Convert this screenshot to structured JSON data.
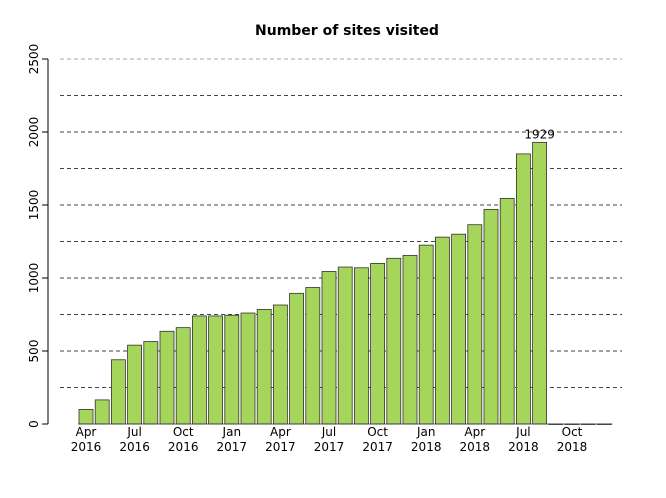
{
  "chart_data": {
    "type": "bar",
    "title": "Number of sites visited",
    "xlabel": "",
    "ylabel": "",
    "ylim": [
      0,
      2500
    ],
    "yticks": [
      0,
      500,
      1000,
      1500,
      2000,
      2500
    ],
    "gridlines": [
      250,
      500,
      750,
      1000,
      1250,
      1500,
      1750,
      2000,
      2250,
      2500
    ],
    "bar_color": "#a5d55a",
    "bar_edge_color": "#333333",
    "categories": [
      "Apr 2016",
      "May 2016",
      "Jun 2016",
      "Jul 2016",
      "Aug 2016",
      "Sep 2016",
      "Oct 2016",
      "Nov 2016",
      "Dec 2016",
      "Jan 2017",
      "Feb 2017",
      "Mar 2017",
      "Apr 2017",
      "May 2017",
      "Jun 2017",
      "Jul 2017",
      "Aug 2017",
      "Sep 2017",
      "Oct 2017",
      "Nov 2017",
      "Dec 2017",
      "Jan 2018",
      "Feb 2018",
      "Mar 2018",
      "Apr 2018",
      "May 2018",
      "Jun 2018",
      "Jul 2018",
      "Aug 2018",
      "Sep 2018",
      "Oct 2018",
      "Nov 2018",
      "Dec 2018"
    ],
    "values": [
      100,
      165,
      440,
      540,
      565,
      635,
      660,
      740,
      740,
      745,
      760,
      785,
      815,
      895,
      935,
      1045,
      1075,
      1070,
      1100,
      1135,
      1155,
      1225,
      1280,
      1300,
      1365,
      1470,
      1545,
      1850,
      1929,
      0,
      0,
      0,
      0
    ],
    "x_tick_labels": [
      {
        "index": 0,
        "month": "Apr",
        "year": "2016"
      },
      {
        "index": 3,
        "month": "Jul",
        "year": "2016"
      },
      {
        "index": 6,
        "month": "Oct",
        "year": "2016"
      },
      {
        "index": 9,
        "month": "Jan",
        "year": "2017"
      },
      {
        "index": 12,
        "month": "Apr",
        "year": "2017"
      },
      {
        "index": 15,
        "month": "Jul",
        "year": "2017"
      },
      {
        "index": 18,
        "month": "Oct",
        "year": "2017"
      },
      {
        "index": 21,
        "month": "Jan",
        "year": "2018"
      },
      {
        "index": 24,
        "month": "Apr",
        "year": "2018"
      },
      {
        "index": 27,
        "month": "Jul",
        "year": "2018"
      },
      {
        "index": 30,
        "month": "Oct",
        "year": "2018"
      }
    ],
    "annotations": [
      {
        "index": 28,
        "text": "1929"
      }
    ],
    "grid": true,
    "legend": "none"
  }
}
